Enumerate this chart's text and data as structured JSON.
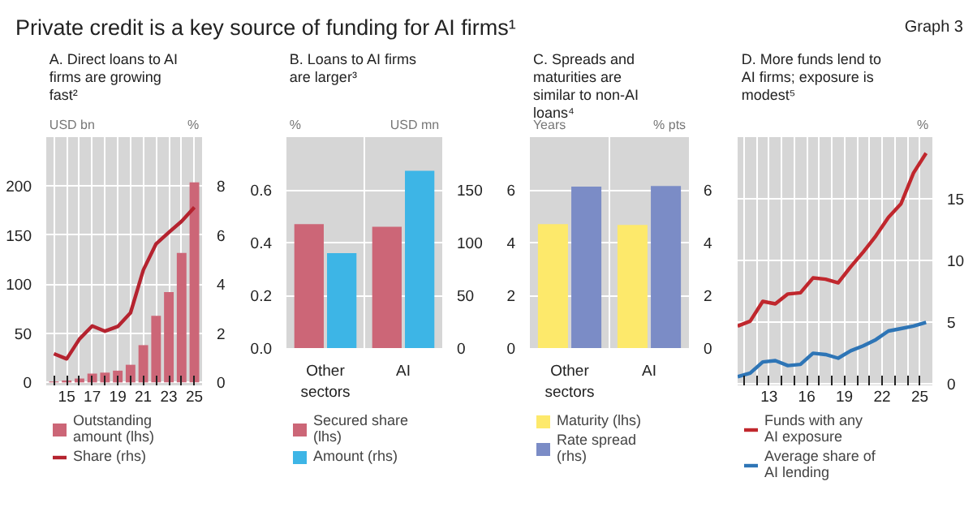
{
  "chart_data": [
    {
      "type": "other",
      "title": "Private credit is a key source of funding for AI firms¹",
      "annotations": [
        "Graph 3"
      ]
    },
    {
      "type": "bar",
      "title": "A. Direct loans to AI firms are growing fast²",
      "ylabel": "USD bn",
      "y2label": "%",
      "x": [
        2014,
        2015,
        2016,
        2017,
        2018,
        2019,
        2020,
        2021,
        2022,
        2023,
        2024,
        2025
      ],
      "xlim": [
        2013.4,
        2025.6
      ],
      "xticks": [
        {
          "value": 2014,
          "label": null
        },
        {
          "value": 2015,
          "label": "15"
        },
        {
          "value": 2016,
          "label": null
        },
        {
          "value": 2017,
          "label": "17"
        },
        {
          "value": 2018,
          "label": null
        },
        {
          "value": 2019,
          "label": "19"
        },
        {
          "value": 2020,
          "label": null
        },
        {
          "value": 2021,
          "label": "21"
        },
        {
          "value": 2022,
          "label": null
        },
        {
          "value": 2023,
          "label": "23"
        },
        {
          "value": 2024,
          "label": null
        },
        {
          "value": 2025,
          "label": "25"
        }
      ],
      "ylim": [
        -3,
        250
      ],
      "yticks": [
        0,
        50,
        100,
        150,
        200
      ],
      "y2lim": [
        -0.12,
        10
      ],
      "y2ticks": [
        0,
        2,
        4,
        6,
        8
      ],
      "series": [
        {
          "name": "Outstanding amount (lhs)",
          "color": "#cc6677",
          "values": [
            1,
            2,
            4,
            9,
            10,
            12,
            18,
            38,
            68,
            92,
            132,
            204
          ]
        },
        {
          "name": "Share (rhs)",
          "type": "line",
          "axis": "y2",
          "color": "#b5232f",
          "values": [
            1.17,
            0.96,
            1.77,
            2.3,
            2.09,
            2.28,
            2.84,
            4.58,
            5.65,
            6.12,
            6.57,
            7.14
          ]
        }
      ],
      "grid": true,
      "legend": "bottom"
    },
    {
      "type": "bar",
      "title": "B. Loans to AI firms are larger³",
      "ylabel": "%",
      "y2label": "USD mn",
      "categories": [
        "Other sectors",
        "AI"
      ],
      "ylim": [
        0,
        0.8
      ],
      "yticks": [
        {
          "value": 0,
          "label": "0.0"
        },
        0.2,
        0.4,
        0.6
      ],
      "y2lim": [
        0,
        200
      ],
      "y2ticks": [
        0,
        50,
        100,
        150
      ],
      "series": [
        {
          "name": "Secured share (lhs)",
          "color": "#cc6677",
          "values": [
            0.47,
            0.46
          ]
        },
        {
          "name": "Amount (rhs)",
          "axis": "y2",
          "color": "#3db5e6",
          "values": [
            90,
            168
          ]
        }
      ],
      "grid": true,
      "legend": "bottom"
    },
    {
      "type": "bar",
      "title": "C. Spreads and maturities are similar to non-AI loans⁴",
      "ylabel": "Years",
      "y2label": "% pts",
      "categories": [
        "Other sectors",
        "AI"
      ],
      "ylim": [
        0,
        8
      ],
      "yticks": [
        0,
        2,
        4,
        6
      ],
      "y2lim": [
        0,
        8
      ],
      "y2ticks": [
        0,
        2,
        4,
        6
      ],
      "series": [
        {
          "name": "Maturity (lhs)",
          "color": "#fde96b",
          "values": [
            4.7,
            4.67
          ]
        },
        {
          "name": "Rate spread (rhs)",
          "axis": "y2",
          "color": "#7b8cc6",
          "values": [
            6.12,
            6.15
          ]
        }
      ],
      "grid": true,
      "legend": "bottom"
    },
    {
      "type": "line",
      "title": "D. More funds lend to AI firms; exposure is modest⁵",
      "y2label": "%",
      "x": [
        2010.5,
        2011.5,
        2012.5,
        2013.5,
        2014.5,
        2015.5,
        2016.5,
        2017.5,
        2018.5,
        2019.5,
        2020.5,
        2021.5,
        2022.5,
        2023.5,
        2024.5,
        2025.5
      ],
      "xlim": [
        2010.5,
        2026
      ],
      "xticks": [
        {
          "value": 2011,
          "label": null
        },
        {
          "value": 2012,
          "label": null
        },
        {
          "value": 2013,
          "label": "13"
        },
        {
          "value": 2014,
          "label": null
        },
        {
          "value": 2015,
          "label": null
        },
        {
          "value": 2016,
          "label": "16"
        },
        {
          "value": 2017,
          "label": null
        },
        {
          "value": 2018,
          "label": null
        },
        {
          "value": 2019,
          "label": "19"
        },
        {
          "value": 2020,
          "label": null
        },
        {
          "value": 2021,
          "label": null
        },
        {
          "value": 2022,
          "label": "22"
        },
        {
          "value": 2023,
          "label": null
        },
        {
          "value": 2024,
          "label": null
        },
        {
          "value": 2025,
          "label": "25"
        }
      ],
      "y2lim": [
        -0.1,
        20
      ],
      "y2ticks": [
        0,
        5,
        10,
        15
      ],
      "series": [
        {
          "name": "Funds with any AI exposure",
          "axis": "y2",
          "color": "#c0272d",
          "values": [
            4.7,
            5.1,
            6.7,
            6.5,
            7.3,
            7.4,
            8.6,
            8.5,
            8.2,
            9.5,
            10.7,
            12.0,
            13.5,
            14.6,
            17.1,
            18.7
          ]
        },
        {
          "name": "Average share of AI lending",
          "axis": "y2",
          "color": "#2e75b6",
          "values": [
            0.6,
            0.9,
            1.8,
            1.9,
            1.5,
            1.6,
            2.5,
            2.4,
            2.1,
            2.7,
            3.1,
            3.6,
            4.3,
            4.5,
            4.7,
            5.0
          ]
        }
      ],
      "grid": true,
      "legend": "bottom"
    }
  ]
}
